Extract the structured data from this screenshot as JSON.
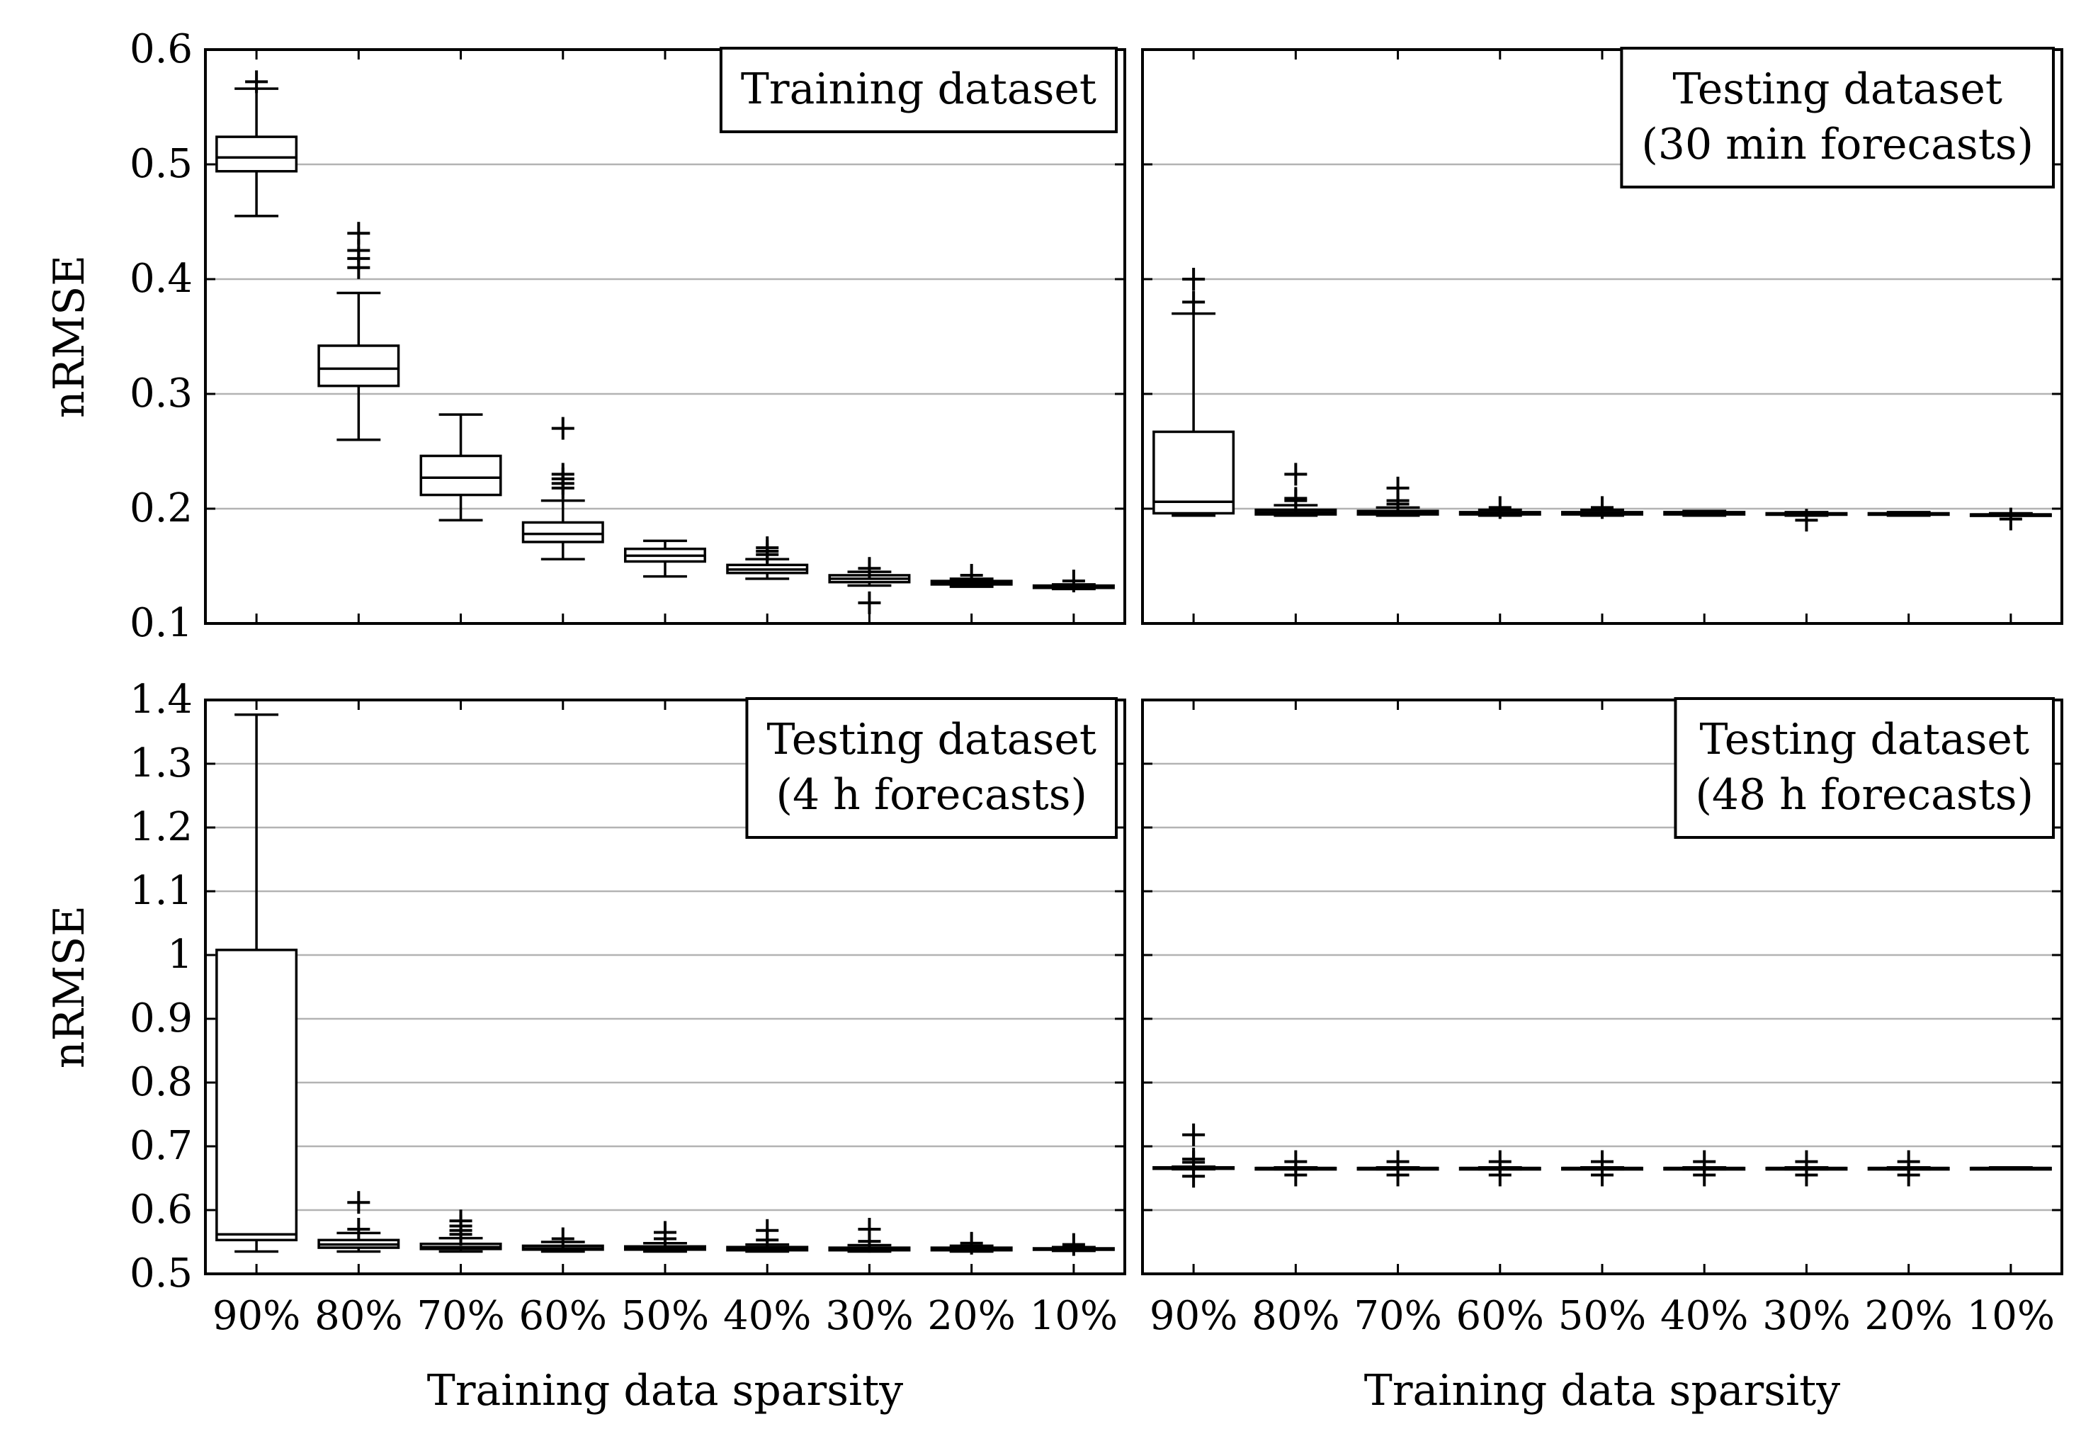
{
  "colors": {
    "frame": "#000000",
    "grid": "#b3b3b3",
    "box_fill": "#ffffff",
    "background": "#ffffff"
  },
  "chart_data": [
    {
      "id": "training",
      "type": "box",
      "legend": [
        "Training dataset"
      ],
      "legend_position": "top-right",
      "ylabel": "nRMSE",
      "xlabel": "",
      "ylim": [
        0.1,
        0.6
      ],
      "yticks": [
        "0.1",
        "0.2",
        "0.3",
        "0.4",
        "0.5",
        "0.6"
      ],
      "grid": true,
      "categories": [
        "90%",
        "80%",
        "70%",
        "60%",
        "50%",
        "40%",
        "30%",
        "20%",
        "10%"
      ],
      "boxes": [
        {
          "whisker_low": 0.455,
          "q1": 0.494,
          "median": 0.506,
          "q3": 0.524,
          "whisker_high": 0.566,
          "outliers": [
            0.572
          ]
        },
        {
          "whisker_low": 0.26,
          "q1": 0.307,
          "median": 0.322,
          "q3": 0.342,
          "whisker_high": 0.388,
          "outliers": [
            0.41,
            0.418,
            0.425,
            0.44
          ]
        },
        {
          "whisker_low": 0.19,
          "q1": 0.212,
          "median": 0.227,
          "q3": 0.246,
          "whisker_high": 0.282,
          "outliers": []
        },
        {
          "whisker_low": 0.156,
          "q1": 0.171,
          "median": 0.178,
          "q3": 0.188,
          "whisker_high": 0.207,
          "outliers": [
            0.218,
            0.222,
            0.226,
            0.23,
            0.27
          ]
        },
        {
          "whisker_low": 0.141,
          "q1": 0.154,
          "median": 0.159,
          "q3": 0.165,
          "whisker_high": 0.172,
          "outliers": []
        },
        {
          "whisker_low": 0.139,
          "q1": 0.144,
          "median": 0.147,
          "q3": 0.151,
          "whisker_high": 0.156,
          "outliers": [
            0.16,
            0.163,
            0.166
          ]
        },
        {
          "whisker_low": 0.133,
          "q1": 0.136,
          "median": 0.139,
          "q3": 0.142,
          "whisker_high": 0.145,
          "outliers": [
            0.118,
            0.148
          ]
        },
        {
          "whisker_low": 0.132,
          "q1": 0.134,
          "median": 0.135,
          "q3": 0.137,
          "whisker_high": 0.139,
          "outliers": [
            0.142
          ]
        },
        {
          "whisker_low": 0.13,
          "q1": 0.131,
          "median": 0.132,
          "q3": 0.133,
          "whisker_high": 0.134,
          "outliers": [
            0.137
          ]
        }
      ]
    },
    {
      "id": "testing-30min",
      "type": "box",
      "legend": [
        "Testing dataset",
        "(30 min forecasts)"
      ],
      "legend_position": "top-right",
      "ylabel": "",
      "xlabel": "",
      "ylim": [
        0.1,
        0.6
      ],
      "yticks": [],
      "grid": true,
      "categories": [
        "90%",
        "80%",
        "70%",
        "60%",
        "50%",
        "40%",
        "30%",
        "20%",
        "10%"
      ],
      "boxes": [
        {
          "whisker_low": 0.194,
          "q1": 0.196,
          "median": 0.206,
          "q3": 0.267,
          "whisker_high": 0.37,
          "outliers": [
            0.38,
            0.4
          ]
        },
        {
          "whisker_low": 0.194,
          "q1": 0.195,
          "median": 0.197,
          "q3": 0.199,
          "whisker_high": 0.203,
          "outliers": [
            0.207,
            0.209,
            0.23
          ]
        },
        {
          "whisker_low": 0.194,
          "q1": 0.195,
          "median": 0.196,
          "q3": 0.198,
          "whisker_high": 0.201,
          "outliers": [
            0.204,
            0.207,
            0.218
          ]
        },
        {
          "whisker_low": 0.194,
          "q1": 0.195,
          "median": 0.196,
          "q3": 0.197,
          "whisker_high": 0.199,
          "outliers": [
            0.201
          ]
        },
        {
          "whisker_low": 0.194,
          "q1": 0.195,
          "median": 0.196,
          "q3": 0.197,
          "whisker_high": 0.199,
          "outliers": [
            0.201
          ]
        },
        {
          "whisker_low": 0.194,
          "q1": 0.195,
          "median": 0.196,
          "q3": 0.197,
          "whisker_high": 0.198,
          "outliers": []
        },
        {
          "whisker_low": 0.194,
          "q1": 0.195,
          "median": 0.195,
          "q3": 0.196,
          "whisker_high": 0.197,
          "outliers": [
            0.19
          ]
        },
        {
          "whisker_low": 0.194,
          "q1": 0.195,
          "median": 0.195,
          "q3": 0.196,
          "whisker_high": 0.197,
          "outliers": []
        },
        {
          "whisker_low": 0.194,
          "q1": 0.194,
          "median": 0.195,
          "q3": 0.195,
          "whisker_high": 0.196,
          "outliers": [
            0.191
          ]
        }
      ]
    },
    {
      "id": "testing-4h",
      "type": "box",
      "legend": [
        "Testing dataset",
        "(4 h forecasts)"
      ],
      "legend_position": "top-right",
      "ylabel": "nRMSE",
      "xlabel": "Training data sparsity",
      "ylim": [
        0.5,
        1.4
      ],
      "yticks": [
        "0.5",
        "0.6",
        "0.7",
        "0.8",
        "0.9",
        "1",
        "1.1",
        "1.2",
        "1.3",
        "1.4"
      ],
      "grid": true,
      "categories": [
        "90%",
        "80%",
        "70%",
        "60%",
        "50%",
        "40%",
        "30%",
        "20%",
        "10%"
      ],
      "boxes": [
        {
          "whisker_low": 0.535,
          "q1": 0.553,
          "median": 0.562,
          "q3": 1.008,
          "whisker_high": 1.377,
          "outliers": []
        },
        {
          "whisker_low": 0.535,
          "q1": 0.541,
          "median": 0.546,
          "q3": 0.553,
          "whisker_high": 0.564,
          "outliers": [
            0.57,
            0.612
          ]
        },
        {
          "whisker_low": 0.535,
          "q1": 0.539,
          "median": 0.542,
          "q3": 0.547,
          "whisker_high": 0.556,
          "outliers": [
            0.562,
            0.568,
            0.575,
            0.583
          ]
        },
        {
          "whisker_low": 0.535,
          "q1": 0.538,
          "median": 0.54,
          "q3": 0.544,
          "whisker_high": 0.55,
          "outliers": [
            0.555
          ]
        },
        {
          "whisker_low": 0.535,
          "q1": 0.538,
          "median": 0.54,
          "q3": 0.543,
          "whisker_high": 0.548,
          "outliers": [
            0.555,
            0.565
          ]
        },
        {
          "whisker_low": 0.535,
          "q1": 0.537,
          "median": 0.539,
          "q3": 0.542,
          "whisker_high": 0.546,
          "outliers": [
            0.553,
            0.568
          ]
        },
        {
          "whisker_low": 0.535,
          "q1": 0.537,
          "median": 0.539,
          "q3": 0.541,
          "whisker_high": 0.545,
          "outliers": [
            0.551,
            0.57
          ]
        },
        {
          "whisker_low": 0.535,
          "q1": 0.537,
          "median": 0.538,
          "q3": 0.541,
          "whisker_high": 0.544,
          "outliers": [
            0.548
          ]
        },
        {
          "whisker_low": 0.536,
          "q1": 0.538,
          "median": 0.539,
          "q3": 0.54,
          "whisker_high": 0.542,
          "outliers": [
            0.546
          ]
        }
      ]
    },
    {
      "id": "testing-48h",
      "type": "box",
      "legend": [
        "Testing dataset",
        "(48 h forecasts)"
      ],
      "legend_position": "top-right",
      "ylabel": "",
      "xlabel": "Training data sparsity",
      "ylim": [
        0.5,
        1.4
      ],
      "yticks": [],
      "grid": true,
      "categories": [
        "90%",
        "80%",
        "70%",
        "60%",
        "50%",
        "40%",
        "30%",
        "20%",
        "10%"
      ],
      "boxes": [
        {
          "whisker_low": 0.664,
          "q1": 0.665,
          "median": 0.666,
          "q3": 0.667,
          "whisker_high": 0.668,
          "outliers": [
            0.653,
            0.675,
            0.68,
            0.718
          ]
        },
        {
          "whisker_low": 0.664,
          "q1": 0.665,
          "median": 0.666,
          "q3": 0.666,
          "whisker_high": 0.667,
          "outliers": [
            0.655,
            0.676
          ]
        },
        {
          "whisker_low": 0.664,
          "q1": 0.665,
          "median": 0.666,
          "q3": 0.666,
          "whisker_high": 0.667,
          "outliers": [
            0.655,
            0.676
          ]
        },
        {
          "whisker_low": 0.664,
          "q1": 0.665,
          "median": 0.666,
          "q3": 0.666,
          "whisker_high": 0.667,
          "outliers": [
            0.655,
            0.676
          ]
        },
        {
          "whisker_low": 0.664,
          "q1": 0.665,
          "median": 0.666,
          "q3": 0.666,
          "whisker_high": 0.667,
          "outliers": [
            0.655,
            0.676
          ]
        },
        {
          "whisker_low": 0.664,
          "q1": 0.665,
          "median": 0.666,
          "q3": 0.666,
          "whisker_high": 0.667,
          "outliers": [
            0.655,
            0.676
          ]
        },
        {
          "whisker_low": 0.664,
          "q1": 0.665,
          "median": 0.666,
          "q3": 0.666,
          "whisker_high": 0.667,
          "outliers": [
            0.655,
            0.676
          ]
        },
        {
          "whisker_low": 0.664,
          "q1": 0.665,
          "median": 0.666,
          "q3": 0.666,
          "whisker_high": 0.667,
          "outliers": [
            0.655,
            0.676
          ]
        },
        {
          "whisker_low": 0.665,
          "q1": 0.665,
          "median": 0.666,
          "q3": 0.666,
          "whisker_high": 0.667,
          "outliers": []
        }
      ]
    }
  ]
}
